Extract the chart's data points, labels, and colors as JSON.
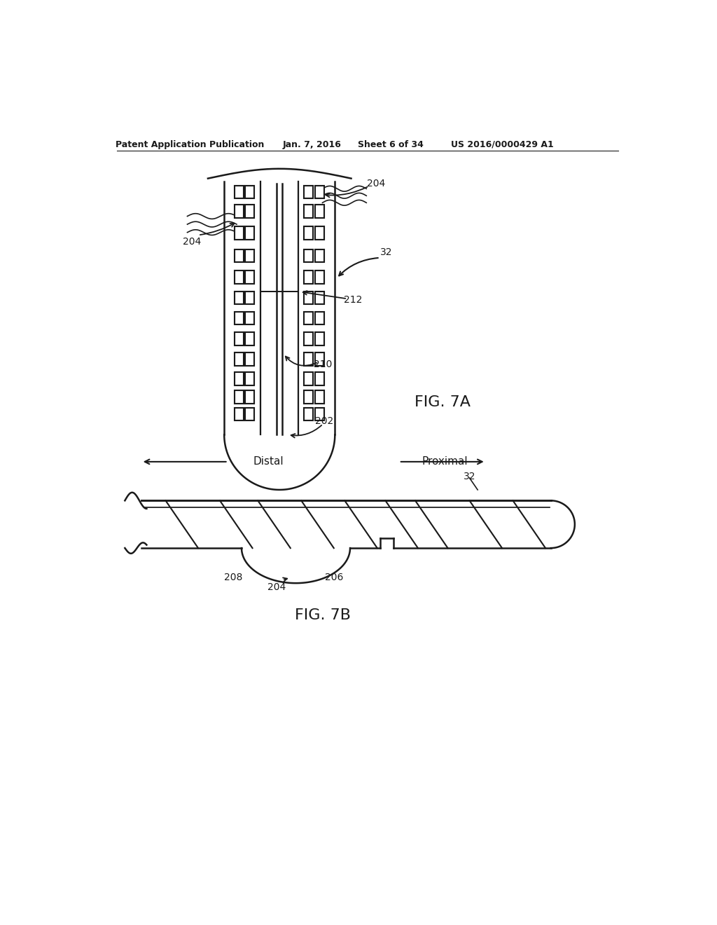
{
  "bg_color": "#ffffff",
  "line_color": "#1a1a1a",
  "header_text": "Patent Application Publication",
  "header_date": "Jan. 7, 2016",
  "header_sheet": "Sheet 6 of 34",
  "header_patent": "US 2016/0000429 A1",
  "fig7a_label": "FIG. 7A",
  "fig7b_label": "FIG. 7B",
  "distal_label": "Distal",
  "proximal_label": "Proximal",
  "ref_32_1": "32",
  "ref_32_2": "32",
  "ref_202": "202",
  "ref_204_left": "204",
  "ref_204_right": "204",
  "ref_204_bottom": "204",
  "ref_206": "206",
  "ref_208": "208",
  "ref_210": "210",
  "ref_212": "212"
}
